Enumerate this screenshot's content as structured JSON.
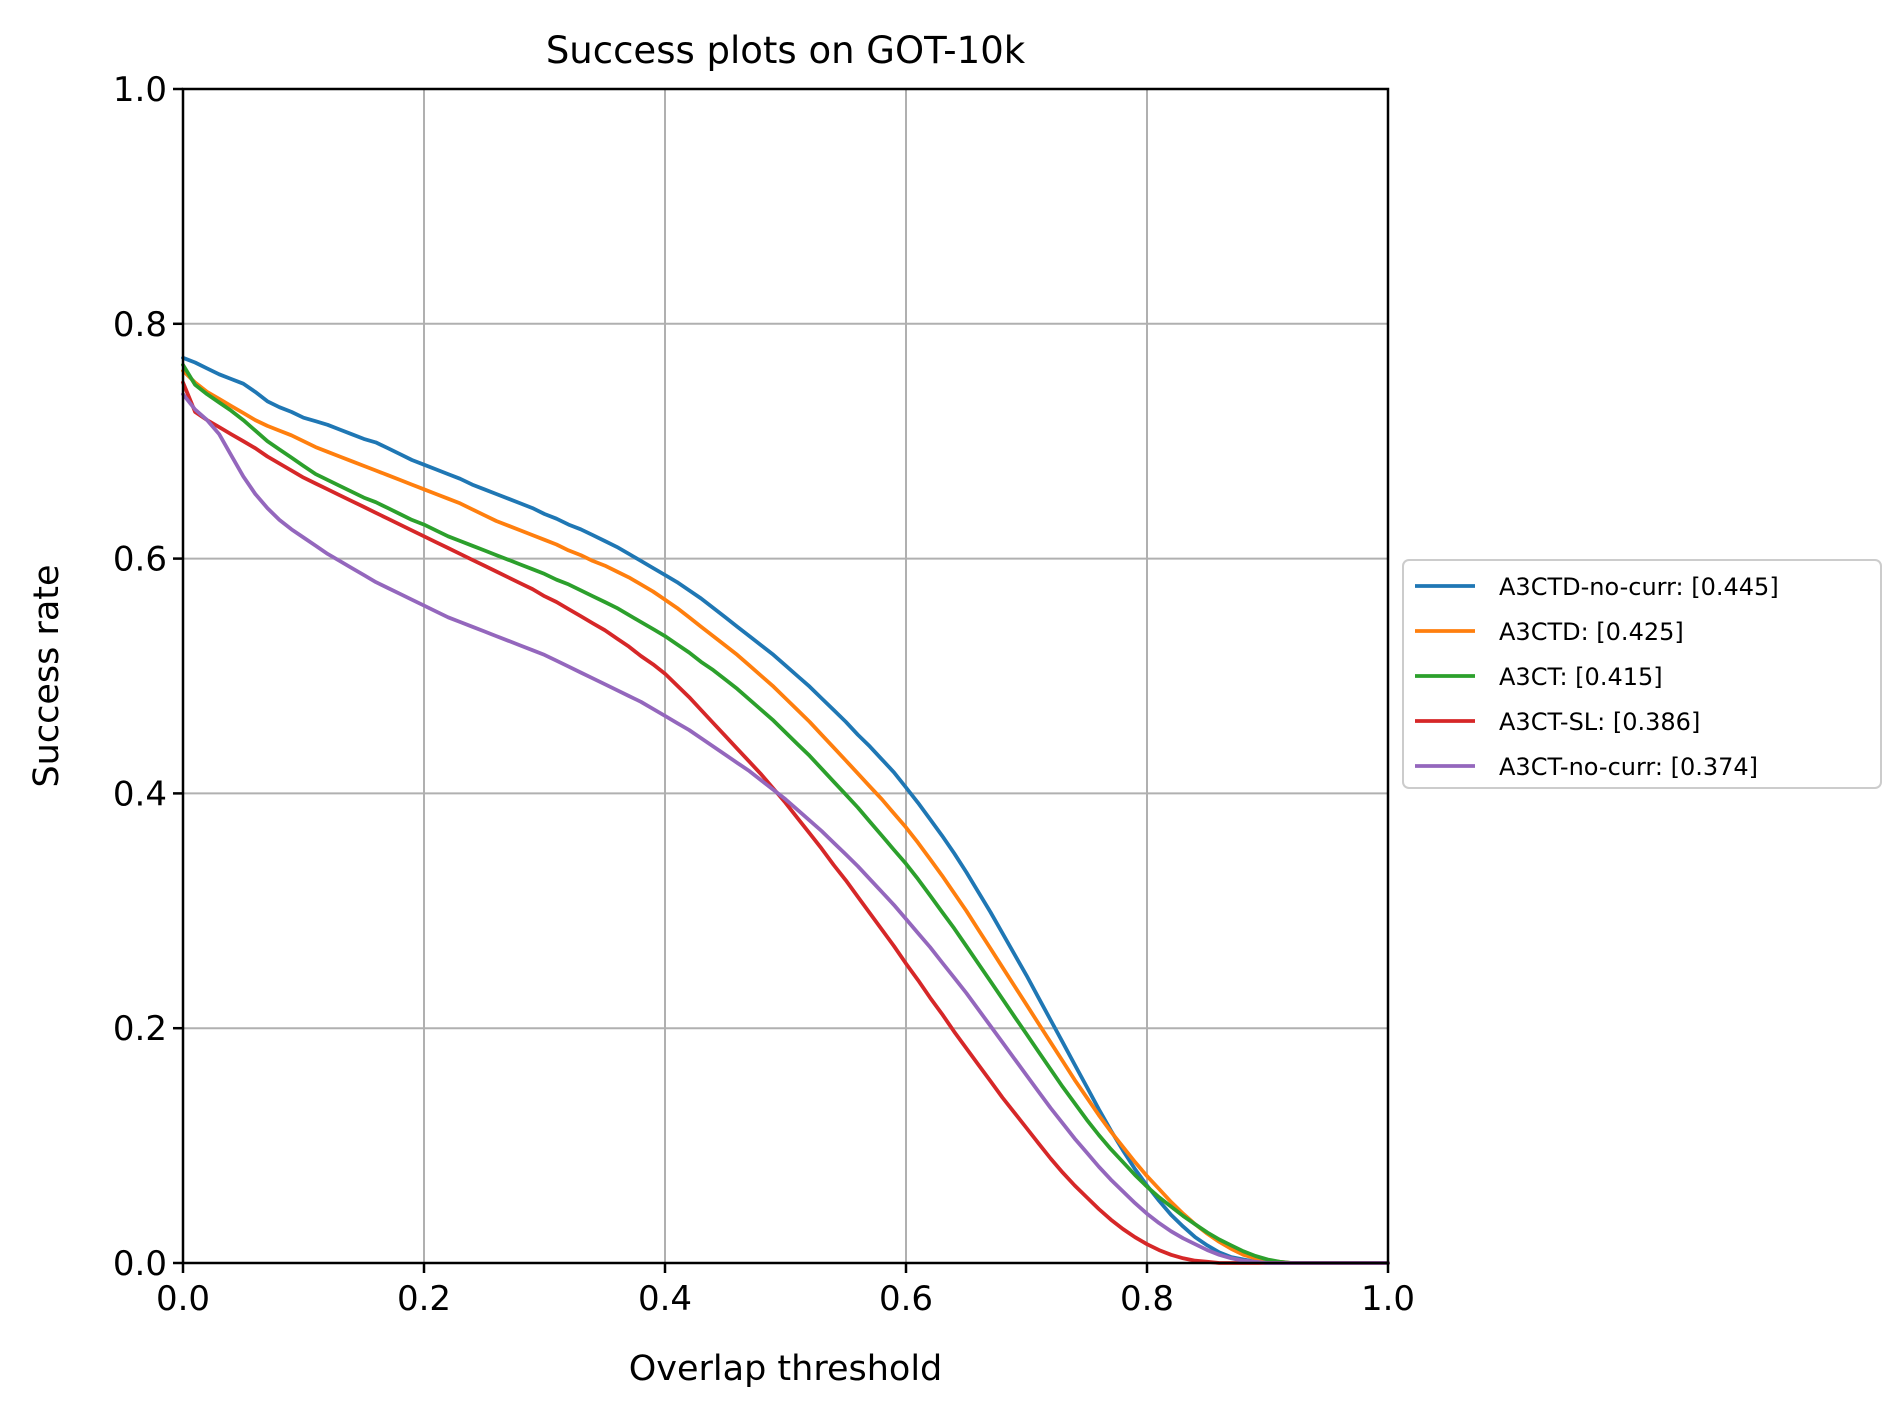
{
  "chart_data": {
    "type": "line",
    "title": "Success plots on GOT-10k",
    "xlabel": "Overlap threshold",
    "ylabel": "Success rate",
    "xlim": [
      0.0,
      1.0
    ],
    "ylim": [
      0.0,
      1.0
    ],
    "xticks": [
      "0.0",
      "0.2",
      "0.4",
      "0.6",
      "0.8",
      "1.0"
    ],
    "yticks": [
      "0.0",
      "0.2",
      "0.4",
      "0.6",
      "0.8",
      "1.0"
    ],
    "grid": true,
    "legend_position": "center right, outside plot",
    "x": [
      0.0,
      0.01,
      0.02,
      0.03,
      0.04,
      0.05,
      0.06,
      0.07,
      0.08,
      0.09,
      0.1,
      0.11,
      0.12,
      0.13,
      0.14,
      0.15,
      0.16,
      0.17,
      0.18,
      0.19,
      0.2,
      0.21,
      0.22,
      0.23,
      0.24,
      0.25,
      0.26,
      0.27,
      0.28,
      0.29,
      0.3,
      0.31,
      0.32,
      0.33,
      0.34,
      0.35,
      0.36,
      0.37,
      0.38,
      0.39,
      0.4,
      0.41,
      0.42,
      0.43,
      0.44,
      0.45,
      0.46,
      0.47,
      0.48,
      0.49,
      0.5,
      0.51,
      0.52,
      0.53,
      0.54,
      0.55,
      0.56,
      0.57,
      0.58,
      0.59,
      0.6,
      0.61,
      0.62,
      0.63,
      0.64,
      0.65,
      0.66,
      0.67,
      0.68,
      0.69,
      0.7,
      0.71,
      0.72,
      0.73,
      0.74,
      0.75,
      0.76,
      0.77,
      0.78,
      0.79,
      0.8,
      0.81,
      0.82,
      0.83,
      0.84,
      0.85,
      0.86,
      0.87,
      0.88,
      0.89,
      0.9,
      0.91,
      0.92,
      0.93,
      0.94,
      0.95,
      0.96,
      0.97,
      0.98,
      0.99,
      1.0
    ],
    "series": [
      {
        "name": "A3CTD-no-curr: [0.445]",
        "color": "#1f77b4",
        "values": [
          0.771,
          0.767,
          0.762,
          0.757,
          0.753,
          0.749,
          0.742,
          0.734,
          0.729,
          0.725,
          0.72,
          0.717,
          0.714,
          0.71,
          0.706,
          0.702,
          0.699,
          0.694,
          0.689,
          0.684,
          0.68,
          0.676,
          0.672,
          0.668,
          0.663,
          0.659,
          0.655,
          0.651,
          0.647,
          0.643,
          0.638,
          0.634,
          0.629,
          0.625,
          0.62,
          0.615,
          0.61,
          0.604,
          0.598,
          0.592,
          0.586,
          0.58,
          0.573,
          0.566,
          0.558,
          0.55,
          0.542,
          0.534,
          0.526,
          0.518,
          0.509,
          0.5,
          0.491,
          0.481,
          0.471,
          0.461,
          0.45,
          0.44,
          0.429,
          0.418,
          0.405,
          0.392,
          0.378,
          0.364,
          0.349,
          0.333,
          0.316,
          0.299,
          0.281,
          0.263,
          0.245,
          0.226,
          0.207,
          0.188,
          0.169,
          0.15,
          0.131,
          0.113,
          0.096,
          0.08,
          0.066,
          0.053,
          0.041,
          0.031,
          0.022,
          0.015,
          0.009,
          0.005,
          0.003,
          0.001,
          0.0,
          0.0,
          0.0,
          0.0,
          0.0,
          0.0,
          0.0,
          0.0,
          0.0,
          0.0,
          0.0
        ]
      },
      {
        "name": "A3CTD: [0.425]",
        "color": "#ff7f0e",
        "values": [
          0.76,
          0.75,
          0.742,
          0.736,
          0.73,
          0.724,
          0.718,
          0.713,
          0.709,
          0.705,
          0.7,
          0.695,
          0.691,
          0.687,
          0.683,
          0.679,
          0.675,
          0.671,
          0.667,
          0.663,
          0.659,
          0.655,
          0.651,
          0.647,
          0.642,
          0.637,
          0.632,
          0.628,
          0.624,
          0.62,
          0.616,
          0.612,
          0.607,
          0.603,
          0.598,
          0.594,
          0.589,
          0.584,
          0.578,
          0.572,
          0.565,
          0.558,
          0.55,
          0.542,
          0.534,
          0.526,
          0.518,
          0.509,
          0.5,
          0.491,
          0.481,
          0.471,
          0.461,
          0.45,
          0.439,
          0.428,
          0.417,
          0.406,
          0.395,
          0.383,
          0.371,
          0.358,
          0.344,
          0.33,
          0.315,
          0.3,
          0.284,
          0.268,
          0.252,
          0.236,
          0.22,
          0.204,
          0.188,
          0.172,
          0.156,
          0.141,
          0.126,
          0.112,
          0.099,
          0.086,
          0.074,
          0.063,
          0.052,
          0.042,
          0.033,
          0.025,
          0.018,
          0.012,
          0.007,
          0.004,
          0.002,
          0.001,
          0.0,
          0.0,
          0.0,
          0.0,
          0.0,
          0.0,
          0.0,
          0.0,
          0.0
        ]
      },
      {
        "name": "A3CT: [0.415]",
        "color": "#2ca02c",
        "values": [
          0.765,
          0.748,
          0.74,
          0.733,
          0.726,
          0.718,
          0.709,
          0.7,
          0.693,
          0.686,
          0.679,
          0.672,
          0.667,
          0.662,
          0.657,
          0.652,
          0.648,
          0.643,
          0.638,
          0.633,
          0.629,
          0.624,
          0.619,
          0.615,
          0.611,
          0.607,
          0.603,
          0.599,
          0.595,
          0.591,
          0.587,
          0.582,
          0.578,
          0.573,
          0.568,
          0.563,
          0.558,
          0.552,
          0.546,
          0.54,
          0.534,
          0.527,
          0.52,
          0.512,
          0.505,
          0.497,
          0.489,
          0.48,
          0.471,
          0.462,
          0.452,
          0.442,
          0.432,
          0.421,
          0.41,
          0.399,
          0.388,
          0.376,
          0.364,
          0.352,
          0.34,
          0.327,
          0.313,
          0.299,
          0.285,
          0.27,
          0.255,
          0.24,
          0.225,
          0.21,
          0.195,
          0.18,
          0.165,
          0.15,
          0.136,
          0.122,
          0.109,
          0.097,
          0.086,
          0.075,
          0.065,
          0.056,
          0.048,
          0.04,
          0.033,
          0.026,
          0.02,
          0.015,
          0.01,
          0.006,
          0.003,
          0.001,
          0.0,
          0.0,
          0.0,
          0.0,
          0.0,
          0.0,
          0.0,
          0.0,
          0.0
        ]
      },
      {
        "name": "A3CT-SL: [0.386]",
        "color": "#d62728",
        "values": [
          0.75,
          0.725,
          0.718,
          0.712,
          0.706,
          0.7,
          0.694,
          0.687,
          0.681,
          0.675,
          0.669,
          0.664,
          0.659,
          0.654,
          0.649,
          0.644,
          0.639,
          0.634,
          0.629,
          0.624,
          0.619,
          0.614,
          0.609,
          0.604,
          0.599,
          0.594,
          0.589,
          0.584,
          0.579,
          0.574,
          0.568,
          0.563,
          0.557,
          0.551,
          0.545,
          0.539,
          0.532,
          0.525,
          0.517,
          0.51,
          0.502,
          0.492,
          0.482,
          0.471,
          0.46,
          0.449,
          0.438,
          0.427,
          0.416,
          0.404,
          0.392,
          0.379,
          0.366,
          0.353,
          0.339,
          0.326,
          0.312,
          0.298,
          0.284,
          0.27,
          0.255,
          0.241,
          0.226,
          0.212,
          0.197,
          0.183,
          0.169,
          0.155,
          0.141,
          0.128,
          0.115,
          0.102,
          0.089,
          0.077,
          0.066,
          0.056,
          0.046,
          0.037,
          0.029,
          0.022,
          0.016,
          0.011,
          0.007,
          0.004,
          0.002,
          0.001,
          0.0,
          0.0,
          0.0,
          0.0,
          0.0,
          0.0,
          0.0,
          0.0,
          0.0,
          0.0,
          0.0,
          0.0,
          0.0,
          0.0,
          0.0
        ]
      },
      {
        "name": "A3CT-no-curr: [0.374]",
        "color": "#9467bd",
        "values": [
          0.74,
          0.727,
          0.718,
          0.706,
          0.688,
          0.67,
          0.655,
          0.643,
          0.633,
          0.625,
          0.618,
          0.611,
          0.604,
          0.598,
          0.592,
          0.586,
          0.58,
          0.575,
          0.57,
          0.565,
          0.56,
          0.555,
          0.55,
          0.546,
          0.542,
          0.538,
          0.534,
          0.53,
          0.526,
          0.522,
          0.518,
          0.513,
          0.508,
          0.503,
          0.498,
          0.493,
          0.488,
          0.483,
          0.478,
          0.472,
          0.466,
          0.46,
          0.454,
          0.447,
          0.44,
          0.433,
          0.426,
          0.419,
          0.411,
          0.403,
          0.395,
          0.386,
          0.377,
          0.368,
          0.358,
          0.348,
          0.338,
          0.327,
          0.316,
          0.305,
          0.293,
          0.281,
          0.269,
          0.256,
          0.243,
          0.23,
          0.216,
          0.202,
          0.188,
          0.174,
          0.16,
          0.146,
          0.132,
          0.119,
          0.106,
          0.094,
          0.082,
          0.071,
          0.061,
          0.051,
          0.042,
          0.034,
          0.027,
          0.021,
          0.016,
          0.011,
          0.007,
          0.004,
          0.002,
          0.001,
          0.0,
          0.0,
          0.0,
          0.0,
          0.0,
          0.0,
          0.0,
          0.0,
          0.0,
          0.0,
          0.0
        ]
      }
    ]
  }
}
